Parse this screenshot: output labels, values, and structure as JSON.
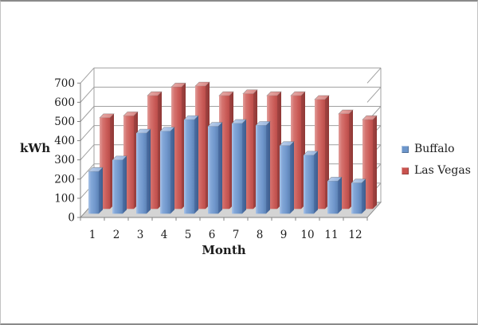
{
  "chart_data": {
    "type": "bar",
    "style": "3d-clustered-column",
    "title": "",
    "xlabel": "Month",
    "ylabel": "kWh",
    "categories": [
      "1",
      "2",
      "3",
      "4",
      "5",
      "6",
      "7",
      "8",
      "9",
      "10",
      "11",
      "12"
    ],
    "series": [
      {
        "name": "Buffalo",
        "color": "#6d96cb",
        "values": [
          220,
          280,
          420,
          430,
          490,
          455,
          470,
          460,
          355,
          305,
          170,
          160
        ]
      },
      {
        "name": "Las Vegas",
        "color": "#c9534f",
        "values": [
          475,
          485,
          590,
          635,
          640,
          590,
          600,
          590,
          590,
          570,
          495,
          465
        ]
      }
    ],
    "y_axis": {
      "min": 0,
      "max": 700,
      "step": 100,
      "tick_labels": [
        "0",
        "100",
        "200",
        "300",
        "400",
        "500",
        "600",
        "700"
      ]
    },
    "legend_position": "right",
    "grid": true,
    "gridline_color": "#a0a0a0",
    "text_color": "#1c1c1c",
    "floor_color": "#d4d4d4"
  }
}
